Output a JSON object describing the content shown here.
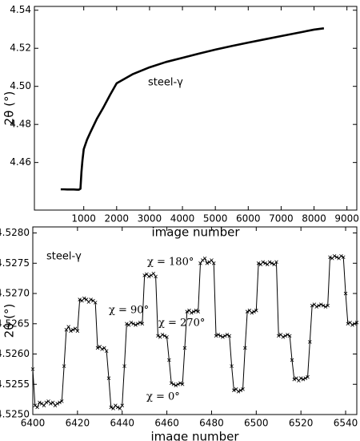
{
  "chart_data": [
    {
      "type": "line",
      "title": null,
      "xlabel": "image number",
      "ylabel": "2θ (°)",
      "xlim": [
        -500,
        9300
      ],
      "ylim": [
        4.435,
        4.542
      ],
      "xticks": [
        1000,
        2000,
        3000,
        4000,
        5000,
        6000,
        7000,
        8000,
        9000
      ],
      "yticks": [
        4.46,
        4.48,
        {
          "value": 4.5,
          "label": "4.50"
        },
        4.52,
        4.54
      ],
      "annotations": [
        "steel-γ"
      ],
      "series": [
        {
          "color": "#000000",
          "x": [
            300,
            400,
            500,
            600,
            700,
            800,
            850,
            900,
            930,
            960,
            1000,
            1100,
            1200,
            1400,
            1600,
            1800,
            2000,
            2500,
            3000,
            3500,
            4000,
            4500,
            5000,
            5500,
            6000,
            6500,
            7000,
            7500,
            8000,
            8300
          ],
          "values": [
            4.4459,
            4.4459,
            4.4458,
            4.4458,
            4.4458,
            4.4457,
            4.4457,
            4.4462,
            4.455,
            4.461,
            4.467,
            4.472,
            4.4758,
            4.483,
            4.489,
            4.4955,
            4.5016,
            4.5065,
            4.51,
            4.5128,
            4.515,
            4.5172,
            4.5193,
            4.5212,
            4.523,
            4.5247,
            4.5264,
            4.5281,
            4.5298,
            4.5305
          ]
        }
      ]
    },
    {
      "type": "line",
      "title": null,
      "xlabel": "image number",
      "ylabel": "2θ (°)",
      "xlim": [
        6400,
        6545
      ],
      "ylim": [
        4.525,
        4.5281
      ],
      "xticks": [
        6400,
        6420,
        6440,
        6460,
        6480,
        6500,
        6520,
        6540
      ],
      "yticks": [
        {
          "value": 4.525,
          "label": "4.5250"
        },
        4.5255,
        {
          "value": 4.526,
          "label": "4.5260"
        },
        4.5265,
        {
          "value": 4.527,
          "label": "4.5270"
        },
        4.5275,
        {
          "value": 4.528,
          "label": "4.5280"
        }
      ],
      "annotations": [
        "steel-γ",
        "χ = 180°",
        "χ = 90°",
        "χ = 270°",
        "χ = 0°"
      ],
      "series": [
        {
          "color": "#000000",
          "marker": "x",
          "x": [
            6400,
            6401,
            6402,
            6403,
            6404,
            6405,
            6406,
            6407,
            6408,
            6409,
            6410,
            6411,
            6412,
            6413,
            6414,
            6415,
            6416,
            6417,
            6418,
            6419,
            6420,
            6421,
            6422,
            6423,
            6424,
            6425,
            6426,
            6427,
            6428,
            6429,
            6430,
            6431,
            6432,
            6433,
            6434,
            6435,
            6436,
            6437,
            6438,
            6439,
            6440,
            6441,
            6442,
            6443,
            6444,
            6445,
            6446,
            6447,
            6448,
            6449,
            6450,
            6451,
            6452,
            6453,
            6454,
            6455,
            6456,
            6457,
            6458,
            6459,
            6460,
            6461,
            6462,
            6463,
            6464,
            6465,
            6466,
            6467,
            6468,
            6469,
            6470,
            6471,
            6472,
            6473,
            6474,
            6475,
            6476,
            6477,
            6478,
            6479,
            6480,
            6481,
            6482,
            6483,
            6484,
            6485,
            6486,
            6487,
            6488,
            6489,
            6490,
            6491,
            6492,
            6493,
            6494,
            6495,
            6496,
            6497,
            6498,
            6499,
            6500,
            6501,
            6502,
            6503,
            6504,
            6505,
            6506,
            6507,
            6508,
            6509,
            6510,
            6511,
            6512,
            6513,
            6514,
            6515,
            6516,
            6517,
            6518,
            6519,
            6520,
            6521,
            6522,
            6523,
            6524,
            6525,
            6526,
            6527,
            6528,
            6529,
            6530,
            6531,
            6532,
            6533,
            6534,
            6535,
            6536,
            6537,
            6538,
            6539,
            6540,
            6541,
            6542,
            6543,
            6544,
            6545
          ],
          "values": [
            4.52575,
            4.52515,
            4.52512,
            4.5252,
            4.52518,
            4.52515,
            4.5252,
            4.52522,
            4.52518,
            4.5252,
            4.52515,
            4.52518,
            4.5252,
            4.52522,
            4.5258,
            4.5264,
            4.52645,
            4.52638,
            4.5264,
            4.52642,
            4.52638,
            4.5269,
            4.52688,
            4.52692,
            4.5269,
            4.52686,
            4.5269,
            4.52688,
            4.52685,
            4.5261,
            4.52612,
            4.52608,
            4.5261,
            4.52605,
            4.5256,
            4.52512,
            4.5251,
            4.52515,
            4.52512,
            4.5251,
            4.52515,
            4.5258,
            4.5265,
            4.52648,
            4.52652,
            4.5265,
            4.52648,
            4.5265,
            4.52652,
            4.5265,
            4.5273,
            4.52732,
            4.52728,
            4.5273,
            4.52733,
            4.52728,
            4.5263,
            4.52628,
            4.52632,
            4.5263,
            4.52628,
            4.5259,
            4.52552,
            4.5255,
            4.52548,
            4.5255,
            4.52552,
            4.5255,
            4.5261,
            4.5267,
            4.52672,
            4.52668,
            4.5267,
            4.52672,
            4.5267,
            4.5275,
            4.52755,
            4.52758,
            4.5275,
            4.52752,
            4.52755,
            4.5275,
            4.5263,
            4.52632,
            4.5263,
            4.52628,
            4.5263,
            4.52632,
            4.5263,
            4.5258,
            4.5254,
            4.52542,
            4.52538,
            4.5254,
            4.52542,
            4.5261,
            4.5267,
            4.52672,
            4.52668,
            4.5267,
            4.52672,
            4.5275,
            4.52748,
            4.52752,
            4.5275,
            4.52748,
            4.52752,
            4.5275,
            4.52748,
            4.52752,
            4.5263,
            4.52632,
            4.52628,
            4.5263,
            4.52632,
            4.5263,
            4.5259,
            4.52558,
            4.5256,
            4.52556,
            4.5256,
            4.52558,
            4.5256,
            4.52562,
            4.5262,
            4.5268,
            4.52682,
            4.52678,
            4.5268,
            4.52682,
            4.5268,
            4.52678,
            4.5268,
            4.5276,
            4.52758,
            4.52762,
            4.5276,
            4.52758,
            4.52762,
            4.5276,
            4.527,
            4.5265,
            4.52652,
            4.52648,
            4.5265,
            4.52652
          ]
        }
      ]
    }
  ]
}
